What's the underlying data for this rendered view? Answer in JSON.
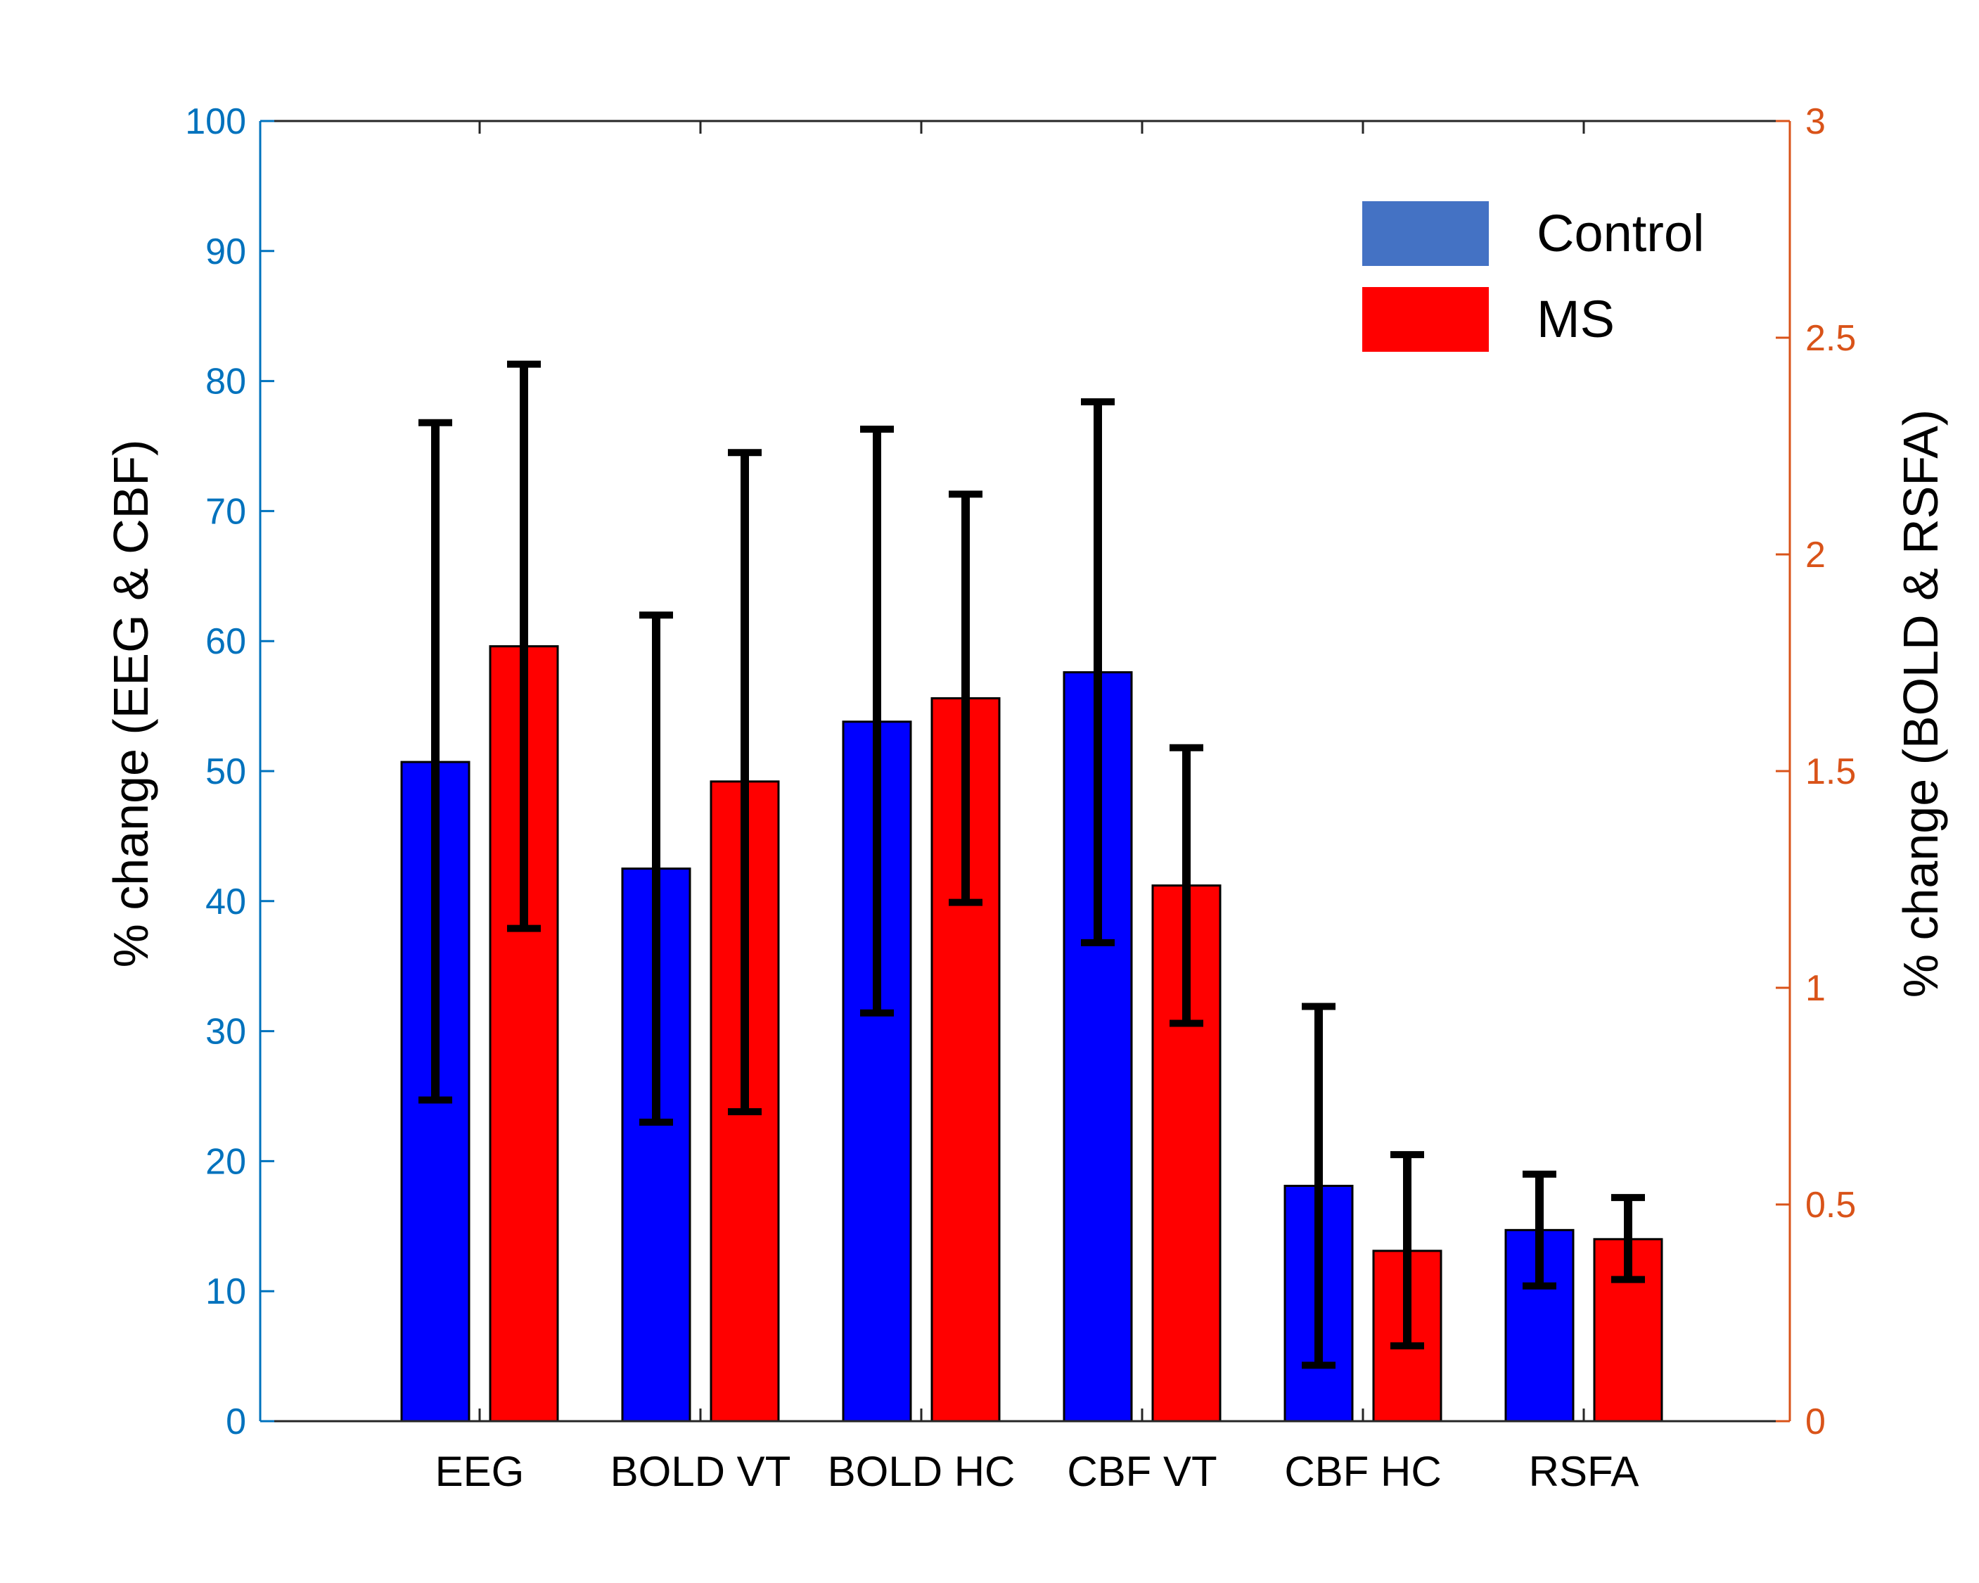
{
  "chart_data": {
    "type": "bar",
    "categories": [
      "EEG",
      "BOLD VT",
      "BOLD HC",
      "CBF VT",
      "CBF HC",
      "RSFA"
    ],
    "series": [
      {
        "name": "Control",
        "color": "#0000ff",
        "legend_color": "#4472c4",
        "values": [
          50.7,
          42.5,
          53.8,
          57.6,
          18.1,
          14.7
        ],
        "error_low": [
          24.7,
          23.0,
          31.4,
          36.8,
          4.3,
          10.4
        ],
        "error_high": [
          76.8,
          62.0,
          76.3,
          78.4,
          31.9,
          19.0
        ]
      },
      {
        "name": "MS",
        "color": "#ff0000",
        "legend_color": "#ff0000",
        "values": [
          59.6,
          49.2,
          55.6,
          41.2,
          13.1,
          14.0
        ],
        "error_low": [
          37.9,
          23.8,
          39.9,
          30.6,
          5.8,
          10.9
        ],
        "error_high": [
          81.3,
          74.5,
          71.3,
          51.8,
          20.5,
          17.2
        ]
      }
    ],
    "left_axis": {
      "label": "% change (EEG & CBF)",
      "ylim": [
        0,
        100
      ],
      "ticks": [
        "0",
        "10",
        "20",
        "30",
        "40",
        "50",
        "60",
        "70",
        "80",
        "90",
        "100"
      ],
      "color": "#0072bd"
    },
    "right_axis": {
      "label": "% change (BOLD & RSFA)",
      "ylim": [
        0,
        3
      ],
      "ticks": [
        "0",
        "0.5",
        "1",
        "1.5",
        "2",
        "2.5",
        "3"
      ],
      "color": "#d95319"
    },
    "grid": false,
    "legend_position": "top-right"
  }
}
